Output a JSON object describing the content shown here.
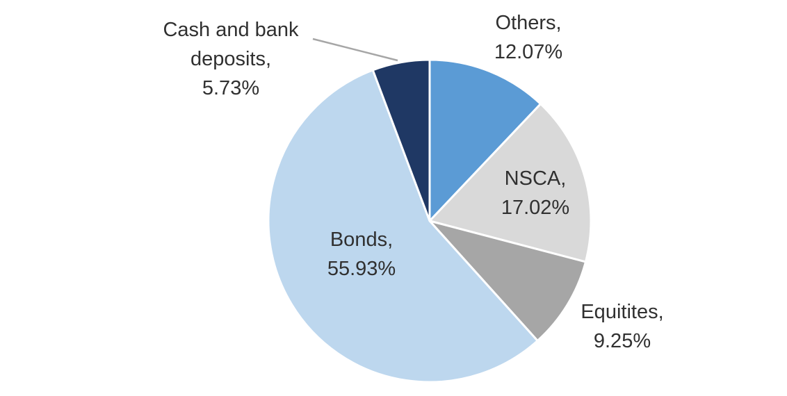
{
  "chart_data": {
    "type": "pie",
    "title": "",
    "categories": [
      "Others",
      "NSCA",
      "Equitites",
      "Bonds",
      "Cash and bank deposits"
    ],
    "values": [
      12.07,
      17.02,
      9.25,
      55.93,
      5.73
    ],
    "colors": [
      "#5B9BD5",
      "#D9D9D9",
      "#A6A6A6",
      "#BDD7EE",
      "#1F3864"
    ],
    "start_angle_deg": 0,
    "direction": "clockwise",
    "slice_border_color": "#FFFFFF",
    "leader_line_color": "#A6A6A6",
    "legend": "none",
    "label_style": "category-name-and-percentage"
  },
  "labels": {
    "others": {
      "line1": "Others,",
      "line2": "12.07%"
    },
    "nsca": {
      "line1": "NSCA,",
      "line2": "17.02%"
    },
    "equitites": {
      "line1": "Equitites,",
      "line2": "9.25%"
    },
    "bonds": {
      "line1": "Bonds,",
      "line2": "55.93%"
    },
    "cash": {
      "line1": "Cash and bank",
      "line2": "deposits,",
      "line3": "5.73%"
    }
  }
}
